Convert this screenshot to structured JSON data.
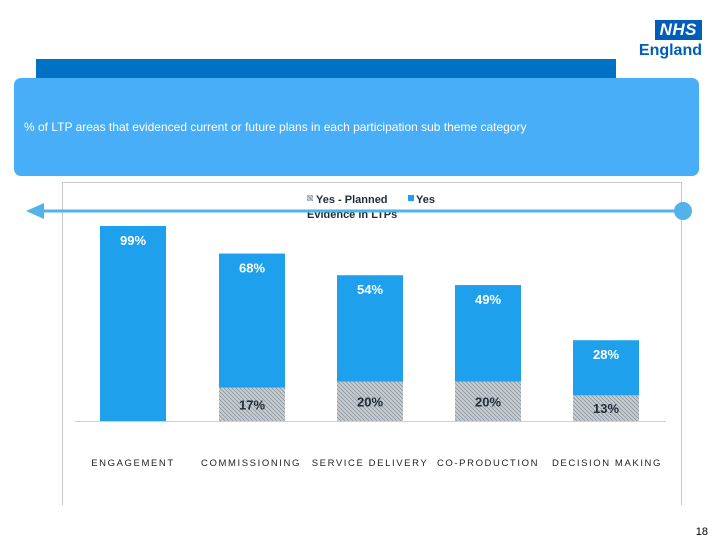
{
  "logo": {
    "nhs": "NHS",
    "england": "England"
  },
  "banner": {
    "text": "% of LTP areas that evidenced current or future plans in each participation sub theme category"
  },
  "page_number": "18",
  "colors": {
    "yes": "#1ea0ec",
    "planned": "#b8bec4",
    "banner": "#47aef7",
    "strip": "#0072c6",
    "arrow": "#52b3ea"
  },
  "chart_data": {
    "type": "bar",
    "stacked": true,
    "title": "Evidence in LTPs",
    "legend_position": "top",
    "categories": [
      "ENGAGEMENT",
      "COMMISSIONING",
      "SERVICE DELIVERY",
      "CO-PRODUCTION",
      "DECISION MAKING"
    ],
    "series": [
      {
        "name": "Yes - Planned",
        "values": [
          null,
          17,
          20,
          20,
          13
        ],
        "labels": [
          "",
          "17%",
          "20%",
          "20%",
          "13%"
        ]
      },
      {
        "name": "Yes",
        "values": [
          99,
          68,
          54,
          49,
          28
        ],
        "labels": [
          "99%",
          "68%",
          "54%",
          "49%",
          "28%"
        ]
      }
    ],
    "ylim": [
      0,
      100
    ],
    "grid": false
  }
}
